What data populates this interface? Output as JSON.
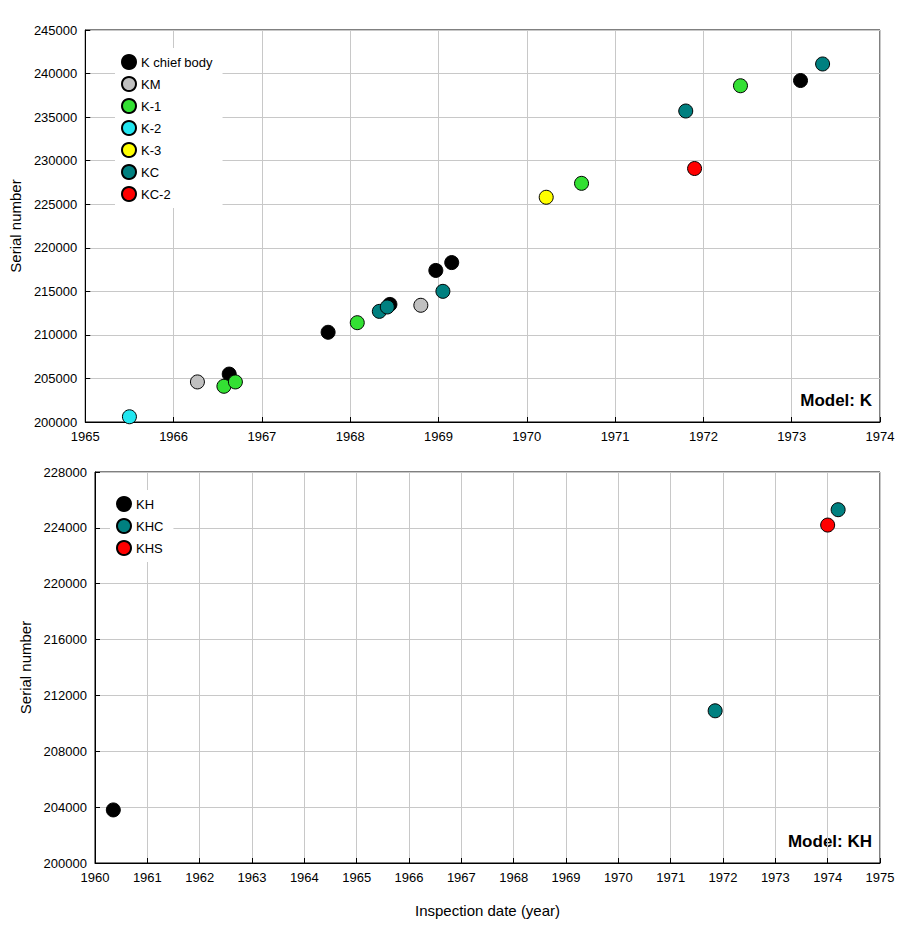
{
  "chart_data": [
    {
      "type": "scatter",
      "annotation": "Model: K",
      "y_label": "Serial number",
      "xlim": [
        1965,
        1974
      ],
      "xticks": [
        1965,
        1966,
        1967,
        1968,
        1969,
        1970,
        1971,
        1972,
        1973,
        1974
      ],
      "ylim": [
        200000,
        245000
      ],
      "yticks": [
        200000,
        205000,
        210000,
        215000,
        220000,
        225000,
        230000,
        235000,
        240000,
        245000
      ],
      "grid": true,
      "legend": "upper left",
      "marker": "circle",
      "series": [
        {
          "name": "K chief body",
          "color": "#000000",
          "x": [
            1966.63,
            1967.75,
            1968.45,
            1968.97,
            1969.15,
            1973.1
          ],
          "values": [
            205500,
            210300,
            213500,
            217400,
            218300,
            239200
          ]
        },
        {
          "name": "KM",
          "color": "#c0c0c0",
          "x": [
            1966.27,
            1968.8
          ],
          "values": [
            204600,
            213400
          ]
        },
        {
          "name": "K-1",
          "color": "#33e033",
          "x": [
            1966.57,
            1966.7,
            1968.08,
            1970.62,
            1972.42
          ],
          "values": [
            204100,
            204600,
            211400,
            227400,
            238600
          ]
        },
        {
          "name": "K-2",
          "color": "#22e6f0",
          "x": [
            1965.5
          ],
          "values": [
            200600
          ]
        },
        {
          "name": "K-3",
          "color": "#ffff00",
          "x": [
            1970.22
          ],
          "values": [
            225800
          ]
        },
        {
          "name": "KC",
          "color": "#008080",
          "x": [
            1968.33,
            1968.42,
            1969.05,
            1971.8,
            1973.35
          ],
          "values": [
            212700,
            213200,
            215000,
            235700,
            241100
          ]
        },
        {
          "name": "KC-2",
          "color": "#ff0000",
          "x": [
            1971.9
          ],
          "values": [
            229100
          ]
        }
      ]
    },
    {
      "type": "scatter",
      "annotation": "Model: KH",
      "y_label": "Serial number",
      "x_label": "Inspection date (year)",
      "xlim": [
        1960,
        1975
      ],
      "xticks": [
        1960,
        1961,
        1962,
        1963,
        1964,
        1965,
        1966,
        1967,
        1968,
        1969,
        1970,
        1971,
        1972,
        1973,
        1974,
        1975
      ],
      "ylim": [
        200000,
        228000
      ],
      "yticks": [
        200000,
        204000,
        208000,
        212000,
        216000,
        220000,
        224000,
        228000
      ],
      "grid": true,
      "legend": "upper left",
      "marker": "circle",
      "series": [
        {
          "name": "KH",
          "color": "#000000",
          "x": [
            1960.35
          ],
          "values": [
            203800
          ]
        },
        {
          "name": "KHC",
          "color": "#008080",
          "x": [
            1971.85,
            1974.2
          ],
          "values": [
            210900,
            225300
          ]
        },
        {
          "name": "KHS",
          "color": "#ff0000",
          "x": [
            1974.0
          ],
          "values": [
            224200
          ]
        }
      ]
    }
  ]
}
